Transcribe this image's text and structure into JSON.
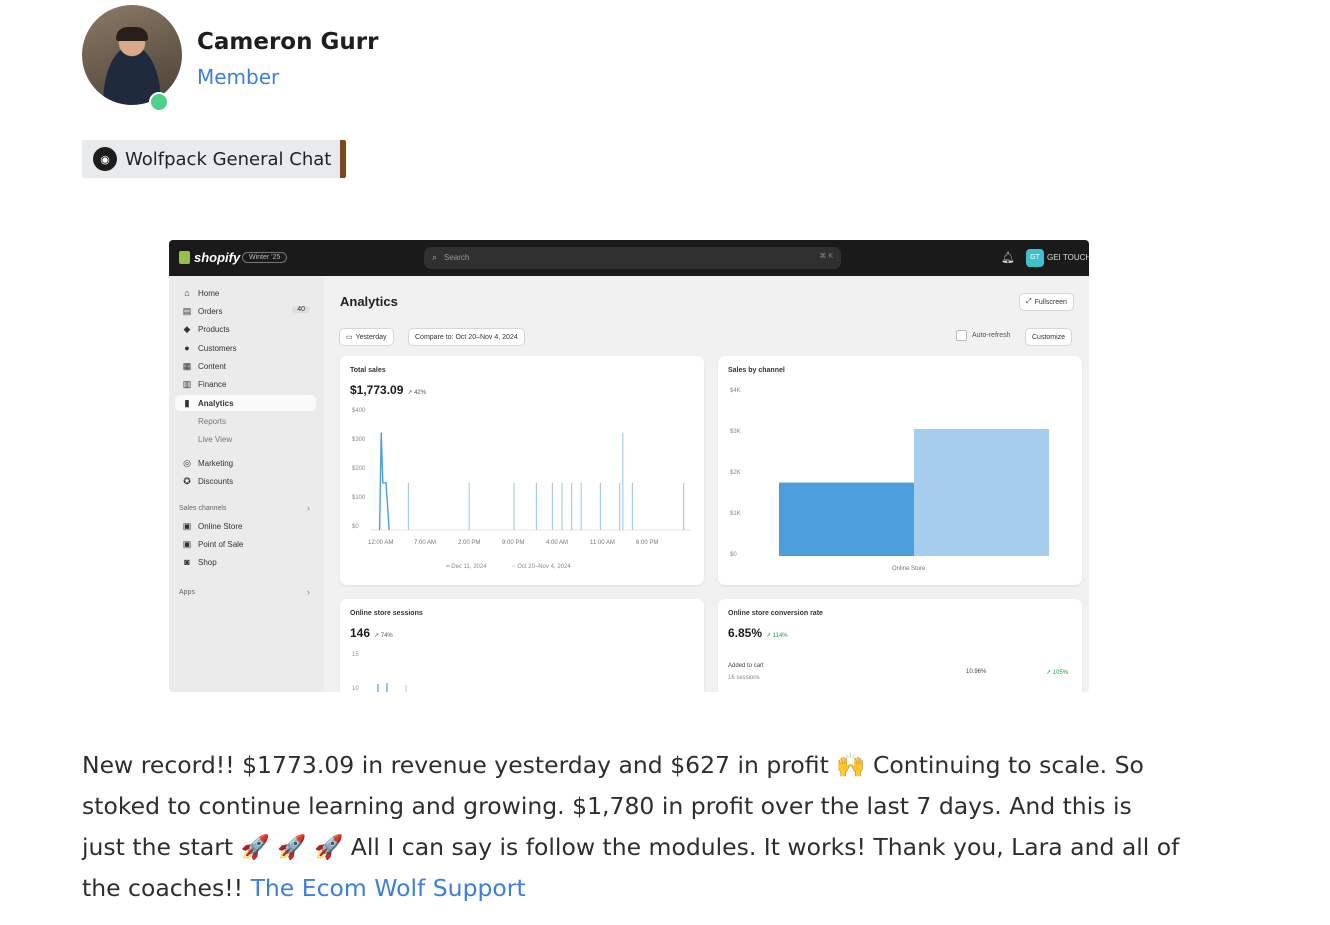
{
  "post": {
    "author_name": "Cameron Gurr",
    "author_role": "Member",
    "channel": "Wolfpack General Chat",
    "text_1": "New record!! $1773.09 in revenue yesterday and $627 in profit 🙌 Continuing to scale. So stoked to continue learning and growing. $1,780 in profit over the last 7 days. And this is just the start 🚀 🚀 🚀 All I can say is follow the modules. It works! Thank you, Lara and all of the coaches!! ",
    "mention": "The Ecom Wolf Support"
  },
  "shopify": {
    "logo": "shopify",
    "edition": "Winter '25",
    "search_placeholder": "Search",
    "search_shortcut": "⌘ K",
    "store_initials": "GT",
    "store_name": "GEI TOUCH",
    "nav": [
      {
        "label": "Home",
        "icon": "home-icon"
      },
      {
        "label": "Orders",
        "icon": "orders-icon",
        "count": "40"
      },
      {
        "label": "Products",
        "icon": "tag-icon"
      },
      {
        "label": "Customers",
        "icon": "person-icon"
      },
      {
        "label": "Content",
        "icon": "content-icon"
      },
      {
        "label": "Finance",
        "icon": "bank-icon"
      },
      {
        "label": "Analytics",
        "icon": "bar-chart-icon"
      },
      {
        "label": "Reports"
      },
      {
        "label": "Live View"
      },
      {
        "label": "Marketing",
        "icon": "target-icon"
      },
      {
        "label": "Discounts",
        "icon": "discount-icon"
      },
      {
        "label": "Sales channels"
      },
      {
        "label": "Online Store",
        "icon": "store-icon"
      },
      {
        "label": "Point of Sale",
        "icon": "pos-icon"
      },
      {
        "label": "Shop",
        "icon": "shop-icon"
      },
      {
        "label": "Apps"
      }
    ],
    "page_title": "Analytics",
    "fullscreen": "Fullscreen",
    "date_filter": "Yesterday",
    "compare_filter": "Compare to: Oct 20–Nov 4, 2024",
    "auto_refresh": "Auto-refresh",
    "customize": "Customize"
  },
  "chart_data": [
    {
      "type": "line",
      "title": "Total sales",
      "value": "$1,773.09",
      "delta": "↗ 42%",
      "y_ticks": [
        "$400",
        "$300",
        "$200",
        "$100",
        "$0"
      ],
      "ylim": [
        0,
        400
      ],
      "x_ticks": [
        "12:00 AM",
        "7:00 AM",
        "2:00 PM",
        "9:00 PM",
        "4:00 AM",
        "11:00 AM",
        "6:00 PM"
      ],
      "series": [
        {
          "name": "Dec 11, 2024",
          "points": [
            [
              0.03,
              0
            ],
            [
              0.035,
              330
            ],
            [
              0.04,
              160
            ],
            [
              0.05,
              160
            ],
            [
              0.06,
              0
            ]
          ]
        },
        {
          "name": "Oct 20–Nov 4, 2024",
          "points": [
            [
              0.12,
              160
            ],
            [
              0.31,
              160
            ],
            [
              0.45,
              160
            ],
            [
              0.52,
              160
            ],
            [
              0.57,
              160
            ],
            [
              0.6,
              160
            ],
            [
              0.63,
              160
            ],
            [
              0.66,
              160
            ],
            [
              0.72,
              160
            ],
            [
              0.78,
              160
            ],
            [
              0.79,
              330
            ],
            [
              0.82,
              160
            ],
            [
              0.98,
              160
            ]
          ]
        }
      ]
    },
    {
      "type": "bar",
      "title": "Sales by channel",
      "categories": [
        "Online Store"
      ],
      "series": [
        {
          "name": "Dec 11, 2024",
          "values": [
            1780
          ]
        },
        {
          "name": "Oct 20–Nov 4, 2024",
          "values": [
            3080
          ]
        }
      ],
      "y_ticks": [
        "$4K",
        "$3K",
        "$2K",
        "$1K",
        "$0"
      ],
      "ylim": [
        0,
        4000
      ]
    },
    {
      "type": "line",
      "title": "Online store sessions",
      "value": "146",
      "delta": "↗ 74%",
      "y_ticks": [
        "15",
        "10"
      ]
    },
    {
      "type": "table",
      "title": "Online store conversion rate",
      "value": "6.85%",
      "delta": "↗ 114%",
      "rows": [
        {
          "label": "Added to cart",
          "sub": "16 sessions",
          "rate": "10.96%",
          "change": "↗ 105%"
        }
      ]
    }
  ],
  "colors": {
    "accent_blue": "#3d7fdc",
    "online": "#4fd08a",
    "bar_primary": "#4a9fdc",
    "bar_compare": "#a6cdee"
  }
}
